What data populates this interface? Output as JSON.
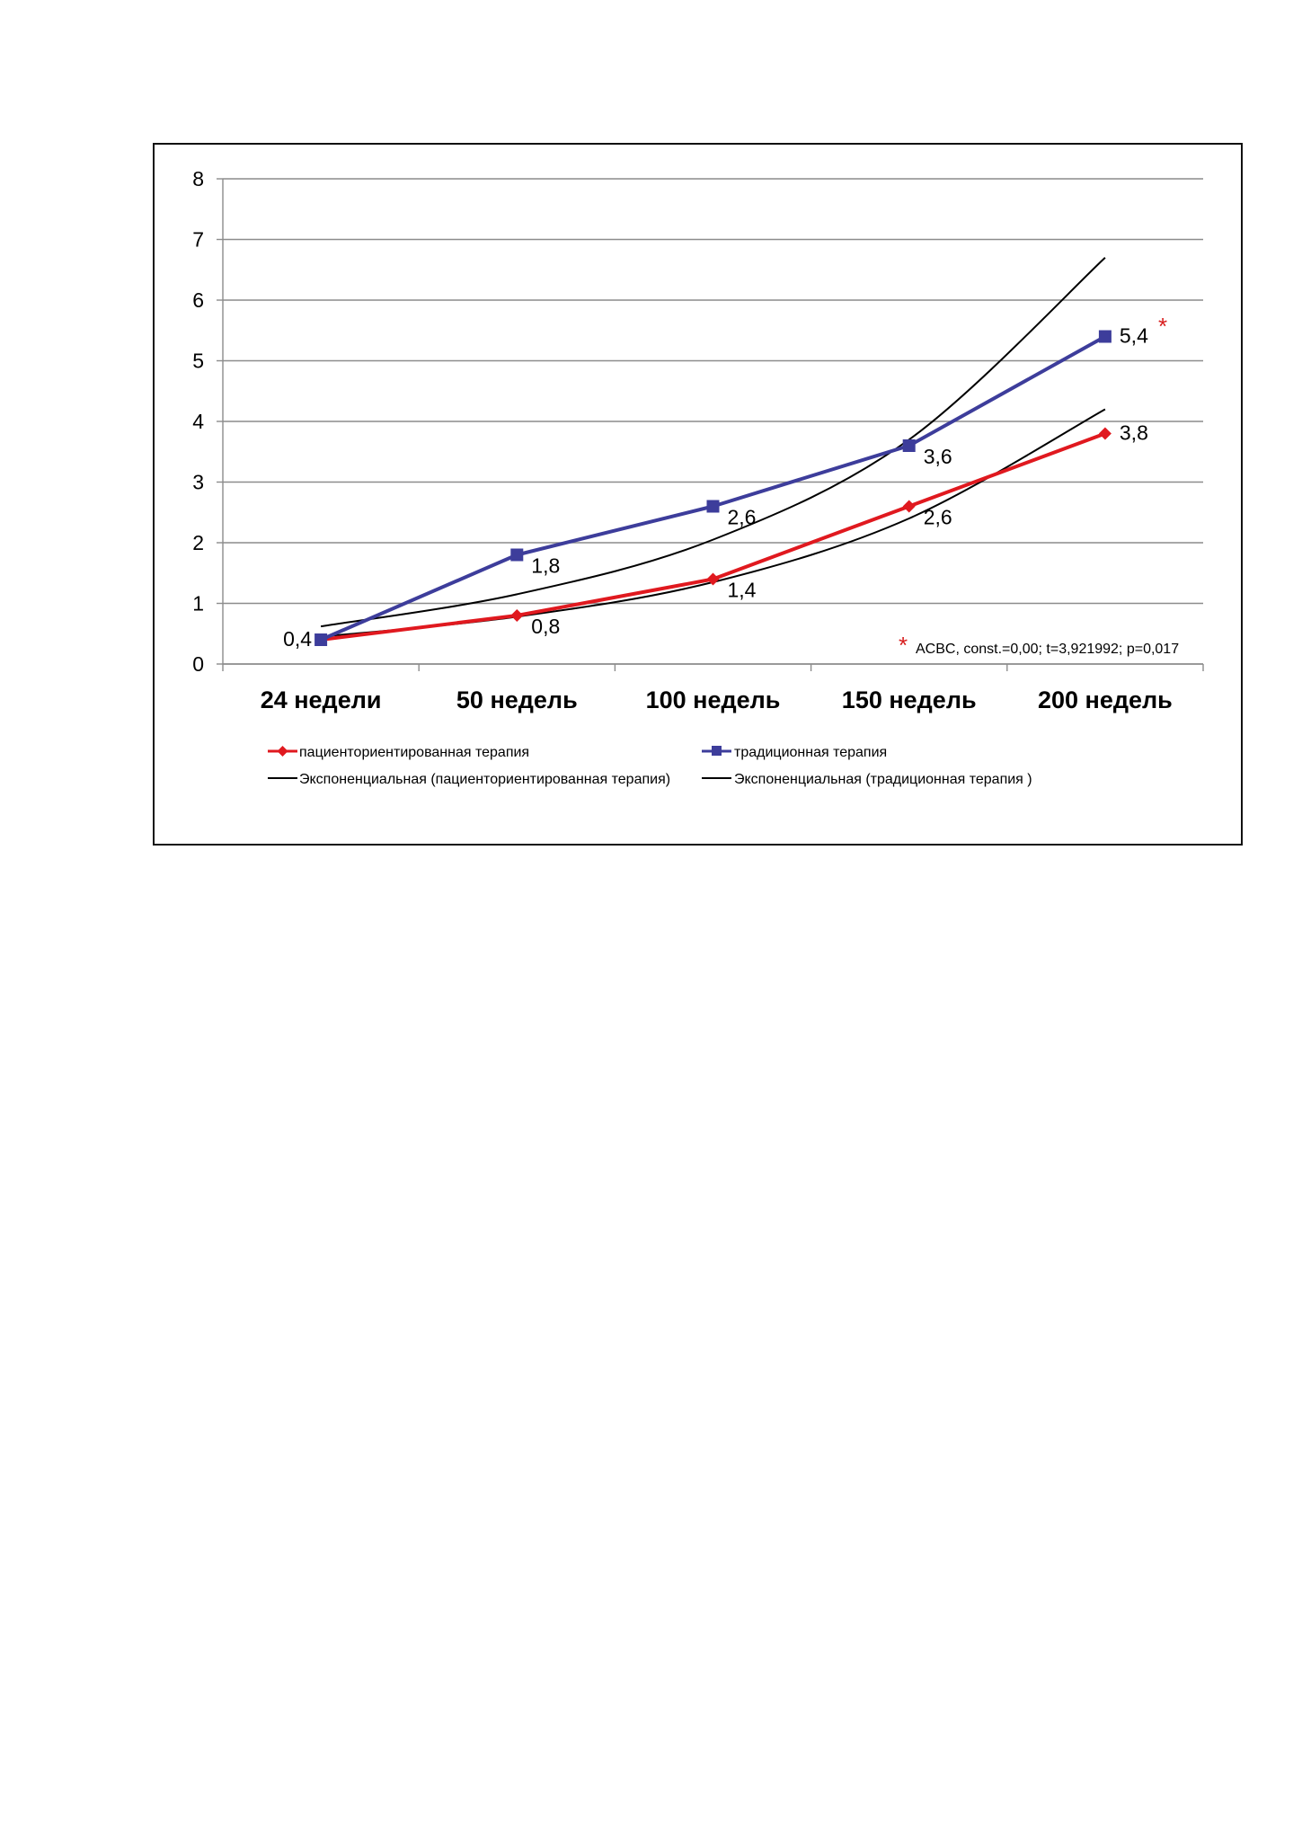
{
  "chart_data": {
    "type": "line",
    "categories": [
      "24 недели",
      "50 недель",
      "100 недель",
      "150 недель",
      "200 недель"
    ],
    "series": [
      {
        "name": "пациенториентированная терапия",
        "values": [
          0.4,
          0.8,
          1.4,
          2.6,
          3.8
        ],
        "data_labels": [
          "",
          "0,8",
          "1,4",
          "2,6",
          "3,8"
        ],
        "color": "#e0191f",
        "marker": "diamond"
      },
      {
        "name": "традиционная терапия",
        "values": [
          0.4,
          1.8,
          2.6,
          3.6,
          5.4
        ],
        "data_labels": [
          "0,4",
          "1,8",
          "2,6",
          "3,6",
          "5,4"
        ],
        "color": "#3d3d9b",
        "marker": "square"
      }
    ],
    "trendlines": [
      {
        "name": "Экспоненциальная (пациенториентированная терапия)",
        "type": "exponential",
        "values": [
          0.45,
          0.78,
          1.35,
          2.4,
          4.2
        ],
        "color": "#000000"
      },
      {
        "name": "Экспоненциальная (традиционная терапия )",
        "type": "exponential",
        "values": [
          0.62,
          1.15,
          2.05,
          3.7,
          6.7
        ],
        "color": "#000000"
      }
    ],
    "ylim": [
      0,
      8
    ],
    "yticks": [
      "0",
      "1",
      "2",
      "3",
      "4",
      "5",
      "6",
      "7",
      "8"
    ],
    "grid": true,
    "legend_position": "bottom",
    "annotation": {
      "star": "*",
      "text": "ACBC, const.=0,00; t=3,921992; p=0,017",
      "marked_point_star": "*"
    },
    "title": "",
    "xlabel": "",
    "ylabel": ""
  }
}
